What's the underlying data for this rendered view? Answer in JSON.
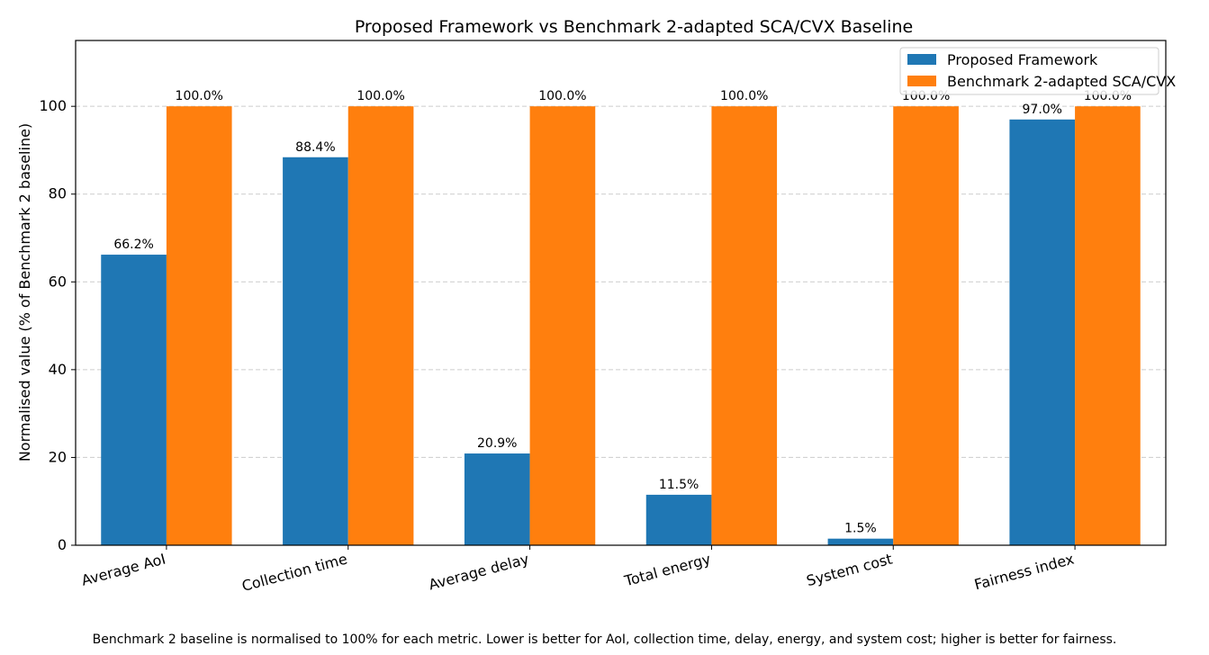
{
  "chart_data": {
    "type": "bar",
    "title": "Proposed Framework vs Benchmark 2-adapted SCA/CVX Baseline",
    "xlabel": "",
    "ylabel": "Normalised value (% of Benchmark 2 baseline)",
    "ylim": [
      0,
      115
    ],
    "yticks": [
      0,
      20,
      40,
      60,
      80,
      100
    ],
    "grid": "y-dashed",
    "legend_position": "top-right",
    "categories": [
      "Average AoI",
      "Collection time",
      "Average delay",
      "Total energy",
      "System cost",
      "Fairness index"
    ],
    "series": [
      {
        "name": "Proposed Framework",
        "color": "#1f77b4",
        "values": [
          66.2,
          88.4,
          20.9,
          11.5,
          1.5,
          97.0
        ],
        "labels": [
          "66.2%",
          "88.4%",
          "20.9%",
          "11.5%",
          "1.5%",
          "97.0%"
        ]
      },
      {
        "name": "Benchmark 2-adapted SCA/CVX",
        "color": "#ff7f0e",
        "values": [
          100.0,
          100.0,
          100.0,
          100.0,
          100.0,
          100.0
        ],
        "labels": [
          "100.0%",
          "100.0%",
          "100.0%",
          "100.0%",
          "100.0%",
          "100.0%"
        ]
      }
    ]
  },
  "caption": "Benchmark 2 baseline is normalised to 100% for each metric. Lower is better for AoI, collection time, delay, energy, and system cost; higher is better for fairness."
}
